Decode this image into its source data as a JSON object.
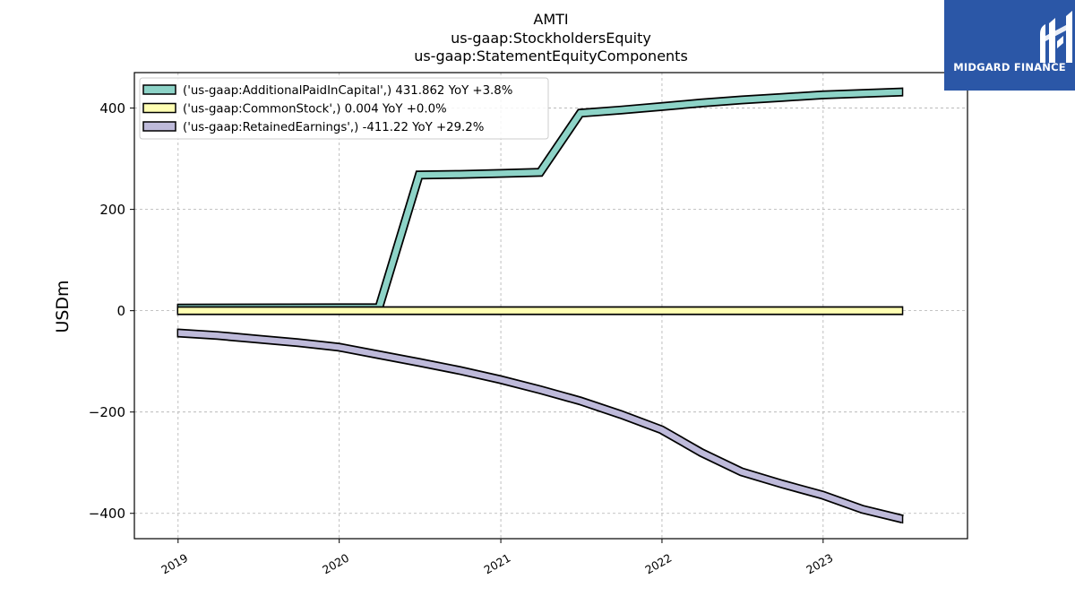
{
  "chart_data": {
    "type": "line",
    "title": [
      "AMTI",
      "us-gaap:StockholdersEquity",
      "us-gaap:StatementEquityComponents"
    ],
    "ylabel": "USDm",
    "xlabel": "",
    "ylim": [
      -450,
      470
    ],
    "xlim": [
      "2018-09-24",
      "2023-11-24"
    ],
    "x_ticks": [
      "2019",
      "2020",
      "2021",
      "2022",
      "2023"
    ],
    "y_ticks": [
      400,
      200,
      0,
      -200,
      -400
    ],
    "y_tick_labels": [
      "400",
      "200",
      "0",
      "−200",
      "−400"
    ],
    "grid": true,
    "legend_position": "top-left",
    "series": [
      {
        "name": "('us-gaap:AdditionalPaidInCapital',) 431.862 YoY +3.8%",
        "color": "#8dd3c7",
        "points": [
          [
            "2018-12-31",
            5
          ],
          [
            "2020-03-31",
            6
          ],
          [
            "2020-06-30",
            268
          ],
          [
            "2020-09-30",
            269
          ],
          [
            "2020-12-31",
            271
          ],
          [
            "2021-03-31",
            273
          ],
          [
            "2021-06-30",
            390
          ],
          [
            "2021-09-30",
            396
          ],
          [
            "2021-12-31",
            403
          ],
          [
            "2022-03-31",
            410
          ],
          [
            "2022-06-30",
            416
          ],
          [
            "2022-09-30",
            421
          ],
          [
            "2022-12-31",
            426
          ],
          [
            "2023-03-31",
            429
          ],
          [
            "2023-06-30",
            431.862
          ]
        ]
      },
      {
        "name": "('us-gaap:CommonStock',) 0.004 YoY +0.0%",
        "color": "#ffffb3",
        "points": [
          [
            "2018-12-31",
            0.004
          ],
          [
            "2023-06-30",
            0.004
          ]
        ]
      },
      {
        "name": "('us-gaap:RetainedEarnings',) -411.22 YoY +29.2%",
        "color": "#bebada",
        "points": [
          [
            "2018-12-31",
            -44
          ],
          [
            "2019-03-31",
            -49
          ],
          [
            "2019-06-30",
            -56
          ],
          [
            "2019-09-30",
            -63
          ],
          [
            "2019-12-31",
            -72
          ],
          [
            "2020-03-31",
            -87
          ],
          [
            "2020-06-30",
            -102
          ],
          [
            "2020-09-30",
            -118
          ],
          [
            "2020-12-31",
            -136
          ],
          [
            "2021-03-31",
            -156
          ],
          [
            "2021-06-30",
            -178
          ],
          [
            "2021-09-30",
            -205
          ],
          [
            "2021-12-31",
            -235
          ],
          [
            "2022-03-31",
            -280
          ],
          [
            "2022-06-30",
            -318
          ],
          [
            "2022-09-30",
            -342
          ],
          [
            "2022-12-31",
            -364
          ],
          [
            "2023-03-31",
            -392
          ],
          [
            "2023-06-30",
            -411.22
          ]
        ]
      }
    ]
  },
  "logo": {
    "text": "MIDGARD FINANCE",
    "background": "#2b57a7",
    "color": "#ffffff"
  }
}
